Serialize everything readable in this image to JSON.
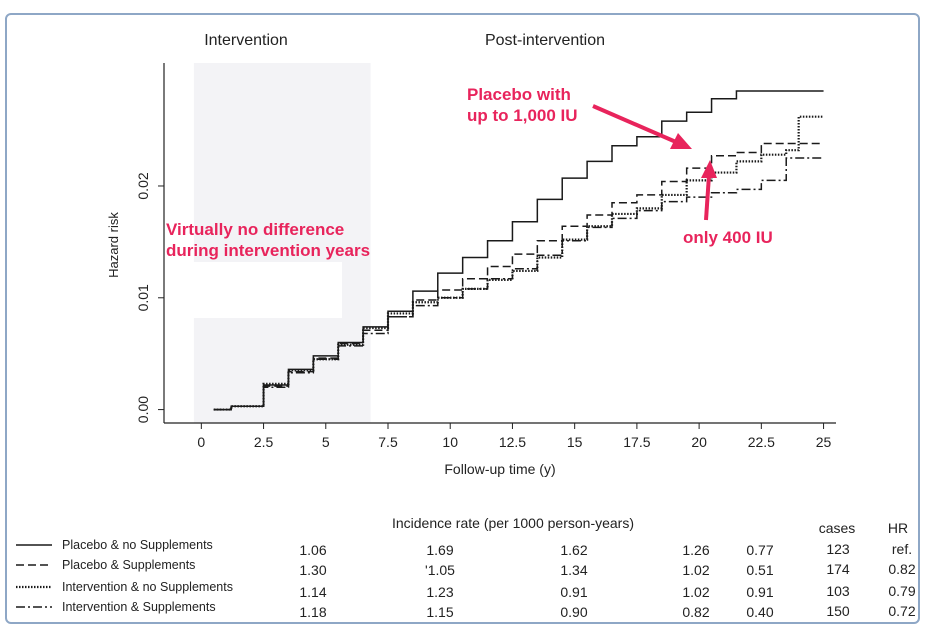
{
  "chart_data": {
    "type": "line",
    "xlabel": "Follow-up time (y)",
    "ylabel": "Hazard risk",
    "xlim": [
      -1.5,
      25.5
    ],
    "ylim": [
      -0.0012,
      0.031
    ],
    "x_ticks": [
      "0",
      "2.5",
      "5",
      "7.5",
      "10",
      "12.5",
      "15",
      "17.5",
      "20",
      "22.5",
      "25"
    ],
    "x_tick_values": [
      0,
      2.5,
      5,
      7.5,
      10,
      12.5,
      15,
      17.5,
      20,
      22.5,
      25
    ],
    "y_ticks": [
      "0.00",
      "0.01",
      "0.02"
    ],
    "y_tick_values": [
      0,
      0.01,
      0.02
    ],
    "period_labels": {
      "intervention": "Intervention",
      "post": "Post-intervention"
    },
    "intervention_span": [
      -0.3,
      6.8
    ],
    "annotations": {
      "no_difference": [
        "Virtually no difference",
        "during intervention years"
      ],
      "placebo": [
        "Placebo with",
        "up to 1,000 IU"
      ],
      "only": "only 400 IU"
    },
    "series": [
      {
        "name": "Placebo & no Supplements",
        "dash": "solid",
        "x": [
          0.5,
          1.2,
          2.5,
          3.5,
          4.5,
          5.5,
          6.5,
          7.5,
          8.5,
          9.5,
          10.5,
          11.5,
          12.5,
          13.5,
          14.5,
          15.5,
          16.5,
          17.5,
          18.5,
          19.5,
          20.5,
          21.5,
          22.5,
          23.5,
          24,
          25
        ],
        "y": [
          0,
          0.0003,
          0.0022,
          0.0036,
          0.0048,
          0.006,
          0.0074,
          0.0088,
          0.0106,
          0.0122,
          0.0136,
          0.0151,
          0.0168,
          0.0188,
          0.0207,
          0.0222,
          0.0236,
          0.0244,
          0.0258,
          0.0266,
          0.0278,
          0.0285,
          0.0285,
          0.0285,
          0.0285,
          0.0285
        ]
      },
      {
        "name": "Placebo & Supplements",
        "dash": "dashed",
        "x": [
          0.5,
          1.2,
          2.5,
          3.5,
          4.5,
          5.5,
          6.5,
          7.5,
          8.5,
          9.5,
          10.5,
          11.5,
          12.5,
          13.5,
          14.5,
          15.5,
          16.5,
          17.5,
          18.5,
          19.5,
          20.5,
          21.5,
          22.5,
          23.5,
          24,
          25
        ],
        "y": [
          0,
          0.0003,
          0.0021,
          0.0034,
          0.0046,
          0.0059,
          0.0071,
          0.0083,
          0.0098,
          0.0107,
          0.0117,
          0.0128,
          0.0139,
          0.0151,
          0.0164,
          0.0174,
          0.0185,
          0.0192,
          0.0204,
          0.0216,
          0.0227,
          0.023,
          0.0238,
          0.0238,
          0.0238,
          0.0238
        ]
      },
      {
        "name": "Intervention & no Supplements",
        "dash": "dotted",
        "x": [
          0.5,
          1.2,
          2.5,
          3.5,
          4.5,
          5.5,
          6.5,
          7.5,
          8.5,
          9.5,
          10.5,
          11.5,
          12.5,
          13.5,
          14.5,
          15.5,
          16.5,
          17.5,
          18.5,
          19.5,
          20.5,
          21.5,
          22.5,
          23.5,
          24,
          25
        ],
        "y": [
          0,
          0.0003,
          0.0023,
          0.0035,
          0.0045,
          0.0058,
          0.0073,
          0.0086,
          0.0096,
          0.01,
          0.0108,
          0.0116,
          0.0124,
          0.0136,
          0.0152,
          0.0164,
          0.0175,
          0.018,
          0.0192,
          0.0205,
          0.0212,
          0.0222,
          0.0228,
          0.0232,
          0.0262,
          0.0262
        ]
      },
      {
        "name": "Intervention & Supplements",
        "dash": "dashdot",
        "x": [
          0.5,
          1.2,
          2.5,
          3.5,
          4.5,
          5.5,
          6.5,
          7.5,
          8.5,
          9.5,
          10.5,
          11.5,
          12.5,
          13.5,
          14.5,
          15.5,
          16.5,
          17.5,
          18.5,
          19.5,
          20.5,
          21.5,
          22.5,
          23.5,
          24,
          25
        ],
        "y": [
          0,
          0.0003,
          0.002,
          0.0033,
          0.0045,
          0.0057,
          0.0068,
          0.0083,
          0.0093,
          0.01,
          0.0108,
          0.0117,
          0.0126,
          0.0138,
          0.0151,
          0.0163,
          0.0171,
          0.0178,
          0.0186,
          0.019,
          0.0194,
          0.0197,
          0.0205,
          0.0225,
          0.0225,
          0.0225
        ]
      }
    ],
    "table": {
      "title": "Incidence rate (per 1000 person-years)",
      "cases_header": "cases",
      "hr_header": "HR",
      "rows": [
        {
          "label": "Placebo & no Supplements",
          "rates": [
            "1.06",
            "1.69",
            "1.62",
            "1.26",
            "0.77"
          ],
          "cases": "123",
          "hr": "ref."
        },
        {
          "label": "Placebo & Supplements",
          "rates": [
            "1.30",
            "'1.05",
            "1.34",
            "1.02",
            "0.51"
          ],
          "cases": "174",
          "hr": "0.82"
        },
        {
          "label": "Intervention & no Supplements",
          "rates": [
            "1.14",
            "1.23",
            "0.91",
            "1.02",
            "0.91"
          ],
          "cases": "103",
          "hr": "0.79"
        },
        {
          "label": "Intervention & Supplements",
          "rates": [
            "1.18",
            "1.15",
            "0.90",
            "0.82",
            "0.40"
          ],
          "cases": "150",
          "hr": "0.72"
        }
      ]
    }
  },
  "colors": {
    "annotation": "#e8245c",
    "line": "#1a1a1a",
    "shade": "#f3f3f6",
    "frame": "#8ea7c6"
  }
}
